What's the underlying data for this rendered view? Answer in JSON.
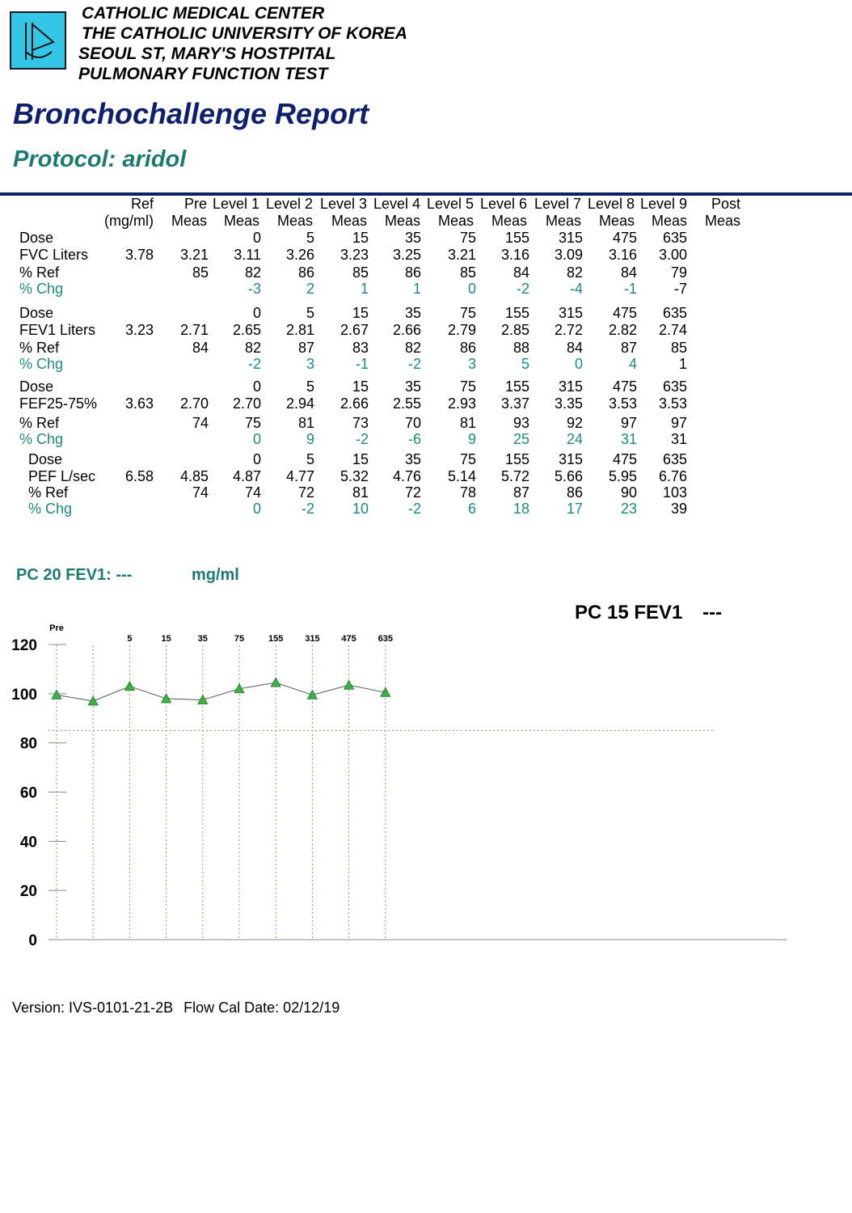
{
  "header": {
    "org_lines": [
      "CATHOLIC MEDICAL CENTER",
      "THE CATHOLIC UNIVERSITY OF KOREA",
      "SEOUL ST, MARY'S HOSTPITAL",
      "PULMONARY FUNCTION TEST"
    ],
    "title": "Bronchochallenge Report",
    "protocol_label": "Protocol:",
    "protocol_value": "aridol",
    "colors": {
      "title": "#0e1f6e",
      "protocol": "#1d7a70",
      "logo_bg": "#33c6e6"
    },
    "logo_icon": "pft-logo-icon"
  },
  "table": {
    "columns": [
      {
        "top": "Ref",
        "bottom": "(mg/ml)"
      },
      {
        "top": "Pre",
        "bottom": "Meas"
      },
      {
        "top": "Level 1",
        "bottom": "Meas"
      },
      {
        "top": "Level 2",
        "bottom": "Meas"
      },
      {
        "top": "Level 3",
        "bottom": "Meas"
      },
      {
        "top": "Level 4",
        "bottom": "Meas"
      },
      {
        "top": "Level 5",
        "bottom": "Meas"
      },
      {
        "top": "Level 6",
        "bottom": "Meas"
      },
      {
        "top": "Level 7",
        "bottom": "Meas"
      },
      {
        "top": "Level 8",
        "bottom": "Meas"
      },
      {
        "top": "Level 9",
        "bottom": "Meas"
      },
      {
        "top": "Post",
        "bottom": "Meas"
      }
    ],
    "sections": [
      {
        "rows": [
          {
            "label": "Dose",
            "type": "normal",
            "values": [
              "",
              "",
              "0",
              "5",
              "15",
              "35",
              "75",
              "155",
              "315",
              "475",
              "635",
              ""
            ]
          },
          {
            "label": "FVC  Liters",
            "type": "normal",
            "values": [
              "3.78",
              "3.21",
              "3.11",
              "3.26",
              "3.23",
              "3.25",
              "3.21",
              "3.16",
              "3.09",
              "3.16",
              "3.00",
              ""
            ]
          },
          {
            "label": "% Ref",
            "type": "normal",
            "values": [
              "",
              "85",
              "82",
              "86",
              "85",
              "86",
              "85",
              "84",
              "82",
              "84",
              "79",
              ""
            ]
          },
          {
            "label": "% Chg",
            "type": "chg",
            "values": [
              "",
              "",
              "-3",
              "2",
              "1",
              "1",
              "0",
              "-2",
              "-4",
              "-1",
              "-7",
              ""
            ]
          }
        ]
      },
      {
        "rows": [
          {
            "label": "Dose",
            "type": "normal",
            "values": [
              "",
              "",
              "0",
              "5",
              "15",
              "35",
              "75",
              "155",
              "315",
              "475",
              "635",
              ""
            ]
          },
          {
            "label": "FEV1 Liters",
            "type": "normal",
            "values": [
              "3.23",
              "2.71",
              "2.65",
              "2.81",
              "2.67",
              "2.66",
              "2.79",
              "2.85",
              "2.72",
              "2.82",
              "2.74",
              ""
            ]
          },
          {
            "label": "% Ref",
            "type": "normal",
            "values": [
              "",
              "84",
              "82",
              "87",
              "83",
              "82",
              "86",
              "88",
              "84",
              "87",
              "85",
              ""
            ]
          },
          {
            "label": "% Chg",
            "type": "chg",
            "values": [
              "",
              "",
              "-2",
              "3",
              "-1",
              "-2",
              "3",
              "5",
              "0",
              "4",
              "1",
              ""
            ]
          }
        ]
      },
      {
        "rows": [
          {
            "label": "Dose",
            "type": "normal",
            "values": [
              "",
              "",
              "0",
              "5",
              "15",
              "35",
              "75",
              "155",
              "315",
              "475",
              "635",
              ""
            ]
          },
          {
            "label": "FEF25-75%",
            "type": "normal",
            "values": [
              "3.63",
              "2.70",
              "2.70",
              "2.94",
              "2.66",
              "2.55",
              "2.93",
              "3.37",
              "3.35",
              "3.53",
              "3.53",
              ""
            ]
          },
          {
            "label": "% Ref",
            "type": "normal",
            "values": [
              "",
              "74",
              "75",
              "81",
              "73",
              "70",
              "81",
              "93",
              "92",
              "97",
              "97",
              ""
            ]
          },
          {
            "label": "% Chg",
            "type": "chg",
            "values": [
              "",
              "",
              "0",
              "9",
              "-2",
              "-6",
              "9",
              "25",
              "24",
              "31",
              "31",
              ""
            ]
          }
        ]
      },
      {
        "rows": [
          {
            "label": "Dose",
            "type": "normal",
            "values": [
              "",
              "",
              "0",
              "5",
              "15",
              "35",
              "75",
              "155",
              "315",
              "475",
              "635",
              ""
            ]
          },
          {
            "label": "PEF  L/sec",
            "type": "normal",
            "values": [
              "6.58",
              "4.85",
              "4.87",
              "4.77",
              "5.32",
              "4.76",
              "5.14",
              "5.72",
              "5.66",
              "5.95",
              "6.76",
              ""
            ]
          },
          {
            "label": "% Ref",
            "type": "normal",
            "values": [
              "",
              "74",
              "74",
              "72",
              "81",
              "72",
              "78",
              "87",
              "86",
              "90",
              "103",
              ""
            ]
          },
          {
            "label": "% Chg",
            "type": "chg",
            "values": [
              "",
              "",
              "0",
              "-2",
              "10",
              "-2",
              "6",
              "18",
              "17",
              "23",
              "39",
              ""
            ]
          }
        ]
      }
    ]
  },
  "pc20": {
    "label": "PC 20 FEV1:",
    "value": "---",
    "unit": "mg/ml"
  },
  "pc15": {
    "label": "PC 15 FEV1",
    "value": "---"
  },
  "chart_data": {
    "type": "line",
    "x_labels": [
      "Pre",
      "",
      "5",
      "15",
      "35",
      "75",
      "155",
      "315",
      "475",
      "635"
    ],
    "values": [
      99.5,
      97,
      103,
      98,
      97.5,
      102,
      104.5,
      99.5,
      103.5,
      100.5
    ],
    "y_ticks": [
      "0",
      "20",
      "40",
      "60",
      "80",
      "100",
      "120"
    ],
    "ylim": [
      0,
      120
    ],
    "threshold": 85,
    "marker": "triangle",
    "marker_color": "#3cb043",
    "line_color": "#555555",
    "grid": "vertical-dotted"
  },
  "footer": {
    "version": "Version: IVS-0101-21-2B",
    "cal_date": "Flow Cal Date: 02/12/19"
  }
}
